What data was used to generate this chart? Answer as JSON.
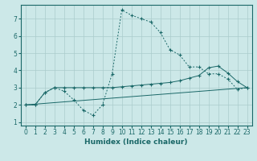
{
  "xlabel": "Humidex (Indice chaleur)",
  "ylabel": "",
  "bg_color": "#cce8e8",
  "grid_color": "#aacccc",
  "line_color": "#1a6868",
  "xlim": [
    -0.5,
    23.5
  ],
  "ylim": [
    0.8,
    7.8
  ],
  "xticks": [
    0,
    1,
    2,
    3,
    4,
    5,
    6,
    7,
    8,
    9,
    10,
    11,
    12,
    13,
    14,
    15,
    16,
    17,
    18,
    19,
    20,
    21,
    22,
    23
  ],
  "yticks": [
    1,
    2,
    3,
    4,
    5,
    6,
    7
  ],
  "curve1_x": [
    0,
    1,
    2,
    3,
    4,
    5,
    6,
    7,
    8,
    9,
    10,
    11,
    12,
    13,
    14,
    15,
    16,
    17,
    18,
    19,
    20,
    21,
    22,
    23
  ],
  "curve1_y": [
    2.0,
    2.0,
    2.7,
    3.0,
    2.8,
    2.3,
    1.7,
    1.4,
    2.0,
    3.8,
    7.5,
    7.2,
    7.0,
    6.8,
    6.2,
    5.2,
    4.9,
    4.2,
    4.2,
    3.8,
    3.8,
    3.5,
    2.9,
    3.0
  ],
  "curve2_x": [
    0,
    1,
    2,
    3,
    4,
    5,
    6,
    7,
    8,
    9,
    10,
    11,
    12,
    13,
    14,
    15,
    16,
    17,
    18,
    19,
    20,
    21,
    22,
    23
  ],
  "curve2_y": [
    2.0,
    2.0,
    2.7,
    3.0,
    3.0,
    3.0,
    3.0,
    3.0,
    3.0,
    3.0,
    3.05,
    3.1,
    3.15,
    3.2,
    3.25,
    3.3,
    3.4,
    3.55,
    3.7,
    4.15,
    4.25,
    3.85,
    3.35,
    3.0
  ],
  "curve3_x": [
    0,
    23
  ],
  "curve3_y": [
    2.0,
    3.0
  ]
}
